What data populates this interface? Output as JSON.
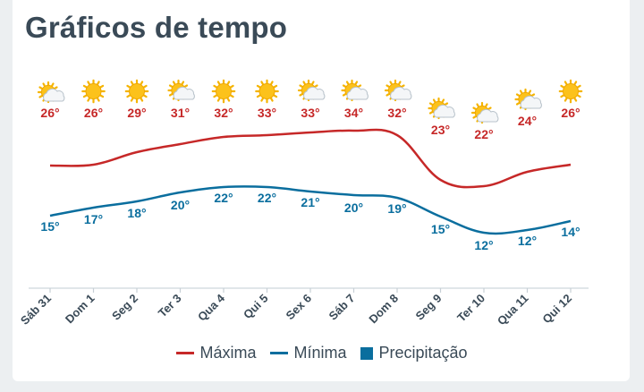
{
  "header": {
    "title": "Gráficos de tempo"
  },
  "legend": {
    "max_label": "Máxima",
    "min_label": "Mínima",
    "precip_label": "Precipitação"
  },
  "colors": {
    "max": "#c62828",
    "min": "#0a6e9e",
    "precip": "#0a6e9e",
    "text_dark": "#3a4a57"
  },
  "chart_data": {
    "type": "line",
    "categories": [
      "Sáb 31",
      "Dom 1",
      "Seg 2",
      "Ter 3",
      "Qua 4",
      "Qui 5",
      "Sex 6",
      "Sáb 7",
      "Dom 8",
      "Seg 9",
      "Ter 10",
      "Qua 11",
      "Qui 12"
    ],
    "icons": [
      "partly-cloudy-icon",
      "sun-icon",
      "sun-icon",
      "partly-cloudy-icon",
      "sun-icon",
      "sun-icon",
      "partly-cloudy-icon",
      "partly-cloudy-icon",
      "partly-cloudy-icon",
      "partly-cloudy-icon",
      "partly-cloudy-icon",
      "partly-cloudy-icon",
      "sun-icon"
    ],
    "series": [
      {
        "name": "Máxima",
        "values": [
          26,
          26,
          29,
          31,
          32,
          33,
          33,
          34,
          32,
          23,
          22,
          24,
          26
        ],
        "labels": [
          "26°",
          "26°",
          "29°",
          "31°",
          "32°",
          "33°",
          "33°",
          "34°",
          "32°",
          "23°",
          "22°",
          "24°",
          "26°"
        ]
      },
      {
        "name": "Mínima",
        "values": [
          15,
          17,
          18,
          20,
          22,
          22,
          21,
          20,
          19,
          15,
          12,
          12,
          14
        ],
        "labels": [
          "15°",
          "17°",
          "18°",
          "20°",
          "22°",
          "22°",
          "21°",
          "20°",
          "19°",
          "15°",
          "12°",
          "12°",
          "14°"
        ]
      }
    ],
    "xlabel": "",
    "ylabel": "",
    "grid": false,
    "legend_position": "bottom"
  }
}
